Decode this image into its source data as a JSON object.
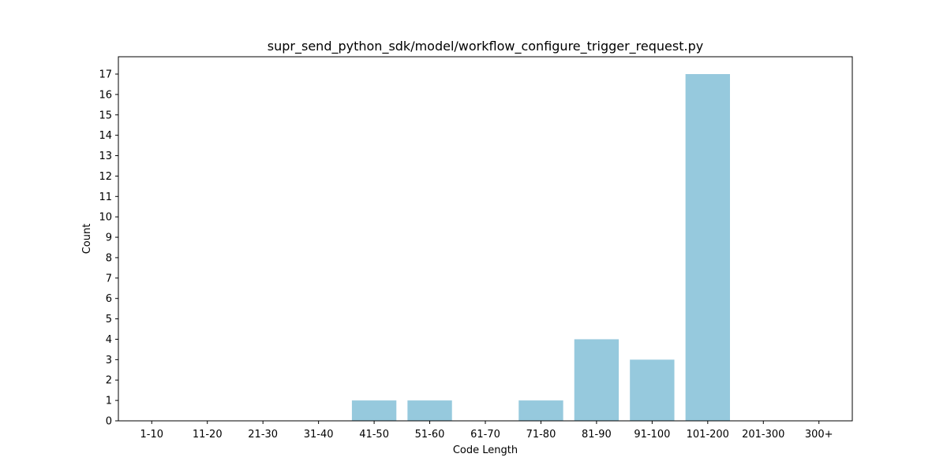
{
  "chart_data": {
    "type": "bar",
    "title": "supr_send_python_sdk/model/workflow_configure_trigger_request.py",
    "xlabel": "Code Length",
    "ylabel": "Count",
    "categories": [
      "1-10",
      "11-20",
      "21-30",
      "31-40",
      "41-50",
      "51-60",
      "61-70",
      "71-80",
      "81-90",
      "91-100",
      "101-200",
      "201-300",
      "300+"
    ],
    "values": [
      0,
      0,
      0,
      0,
      1,
      1,
      0,
      1,
      4,
      3,
      17,
      0,
      0
    ],
    "ylim": [
      0,
      17.85
    ],
    "yticks": [
      0,
      1,
      2,
      3,
      4,
      5,
      6,
      7,
      8,
      9,
      10,
      11,
      12,
      13,
      14,
      15,
      16,
      17
    ],
    "grid": false,
    "legend": "none",
    "colors": {
      "bar": "#96c9dd",
      "axis": "#000000",
      "background": "#ffffff"
    }
  }
}
